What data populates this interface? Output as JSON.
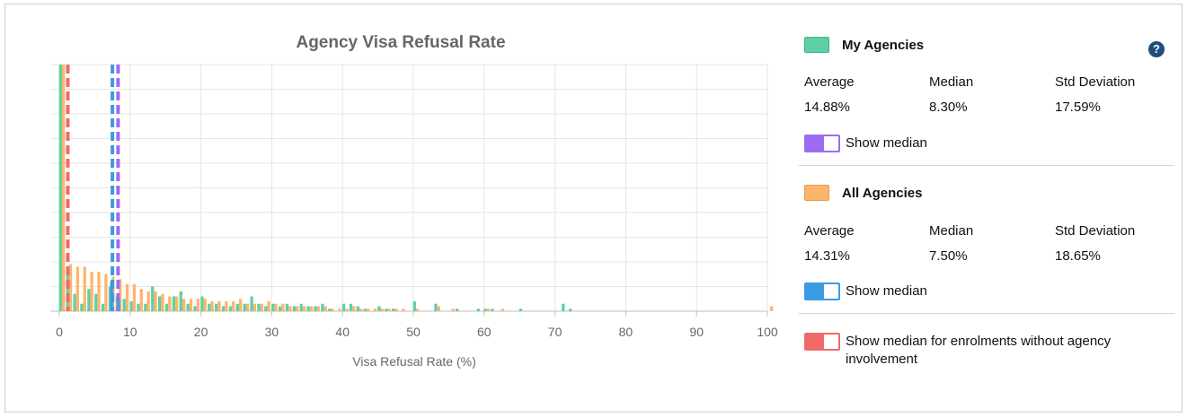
{
  "colors": {
    "my_agencies": "#5fd0a4",
    "all_agencies": "#fdb56c",
    "median_my": "#9b6cf2",
    "median_all": "#3a9be3",
    "median_no_agency": "#f06a6a",
    "help": "#1f4e79"
  },
  "chart_data": {
    "type": "bar",
    "title": "Agency Visa Refusal Rate",
    "xlabel": "Visa Refusal Rate (%)",
    "ylabel": "",
    "xlim": [
      0,
      100
    ],
    "ylim": [
      0,
      100
    ],
    "x_ticks": [
      "0",
      "10",
      "20",
      "30",
      "40",
      "50",
      "60",
      "70",
      "80",
      "90",
      "100"
    ],
    "grid": true,
    "legend": "right",
    "median_lines": [
      {
        "series": "My Agencies",
        "value": 8.3,
        "color": "#9b6cf2"
      },
      {
        "series": "All Agencies",
        "value": 7.5,
        "color": "#3a9be3"
      },
      {
        "series": "Enrolments without agency involvement",
        "value": 1.2,
        "color": "#f06a6a"
      }
    ],
    "series": [
      {
        "name": "My Agencies",
        "color": "#5fd0a4",
        "points": [
          [
            0,
            100
          ],
          [
            1,
            18
          ],
          [
            2,
            7
          ],
          [
            3,
            3
          ],
          [
            4,
            9
          ],
          [
            5,
            7
          ],
          [
            6,
            3
          ],
          [
            7,
            10
          ],
          [
            8,
            6
          ],
          [
            9,
            5
          ],
          [
            10,
            4
          ],
          [
            11,
            3
          ],
          [
            12,
            3
          ],
          [
            13,
            10
          ],
          [
            14,
            6
          ],
          [
            15,
            3
          ],
          [
            16,
            6
          ],
          [
            17,
            8
          ],
          [
            18,
            3
          ],
          [
            19,
            2
          ],
          [
            20,
            6
          ],
          [
            21,
            3
          ],
          [
            22,
            3
          ],
          [
            23,
            2
          ],
          [
            24,
            2
          ],
          [
            25,
            3
          ],
          [
            26,
            3
          ],
          [
            27,
            6
          ],
          [
            28,
            3
          ],
          [
            29,
            2
          ],
          [
            30,
            3
          ],
          [
            31,
            2
          ],
          [
            32,
            3
          ],
          [
            33,
            2
          ],
          [
            34,
            3
          ],
          [
            35,
            2
          ],
          [
            36,
            2
          ],
          [
            37,
            3
          ],
          [
            38,
            1
          ],
          [
            40,
            3
          ],
          [
            41,
            3
          ],
          [
            42,
            2
          ],
          [
            43,
            1
          ],
          [
            45,
            2
          ],
          [
            46,
            1
          ],
          [
            47,
            1
          ],
          [
            50,
            4
          ],
          [
            53,
            3
          ],
          [
            56,
            1
          ],
          [
            59,
            1
          ],
          [
            60,
            1
          ],
          [
            61,
            1
          ],
          [
            65,
            1
          ],
          [
            71,
            3
          ],
          [
            72,
            1
          ]
        ]
      },
      {
        "name": "All Agencies",
        "color": "#fdb56c",
        "points": [
          [
            0,
            100
          ],
          [
            1,
            19
          ],
          [
            2,
            18
          ],
          [
            3,
            18
          ],
          [
            4,
            16
          ],
          [
            5,
            16
          ],
          [
            6,
            15
          ],
          [
            7,
            14
          ],
          [
            8,
            13
          ],
          [
            9,
            11
          ],
          [
            10,
            11
          ],
          [
            11,
            9
          ],
          [
            12,
            8
          ],
          [
            13,
            8
          ],
          [
            14,
            7
          ],
          [
            15,
            6
          ],
          [
            16,
            6
          ],
          [
            17,
            5
          ],
          [
            18,
            5
          ],
          [
            19,
            5
          ],
          [
            20,
            5
          ],
          [
            21,
            4
          ],
          [
            22,
            4
          ],
          [
            23,
            4
          ],
          [
            24,
            4
          ],
          [
            25,
            5
          ],
          [
            26,
            3
          ],
          [
            27,
            3
          ],
          [
            28,
            3
          ],
          [
            29,
            4
          ],
          [
            30,
            3
          ],
          [
            31,
            3
          ],
          [
            32,
            2
          ],
          [
            33,
            2
          ],
          [
            34,
            2
          ],
          [
            35,
            2
          ],
          [
            36,
            2
          ],
          [
            37,
            2
          ],
          [
            38,
            1
          ],
          [
            39,
            1
          ],
          [
            40,
            1
          ],
          [
            41,
            2
          ],
          [
            42,
            1
          ],
          [
            43,
            1
          ],
          [
            44,
            1
          ],
          [
            45,
            1
          ],
          [
            46,
            1
          ],
          [
            47,
            1
          ],
          [
            48,
            1
          ],
          [
            50,
            1
          ],
          [
            53,
            2
          ],
          [
            55,
            1
          ],
          [
            60,
            1
          ],
          [
            62,
            1
          ],
          [
            100,
            2
          ]
        ]
      },
      {
        "name": "",
        "color": "#3a9be3",
        "points": [
          [
            7,
            12
          ],
          [
            8,
            5
          ]
        ]
      }
    ]
  },
  "my_agencies": {
    "title": "My Agencies",
    "average_label": "Average",
    "median_label": "Median",
    "std_label": "Std Deviation",
    "average": "14.88%",
    "median": "8.30%",
    "std": "17.59%",
    "toggle_label": "Show median",
    "toggle_on": true
  },
  "all_agencies": {
    "title": "All Agencies",
    "average_label": "Average",
    "median_label": "Median",
    "std_label": "Std Deviation",
    "average": "14.31%",
    "median": "7.50%",
    "std": "18.65%",
    "toggle_label": "Show median",
    "toggle_on": true
  },
  "no_agency": {
    "toggle_label": "Show median for enrolments without agency involvement",
    "toggle_on": true
  },
  "help_icon": "question-icon"
}
